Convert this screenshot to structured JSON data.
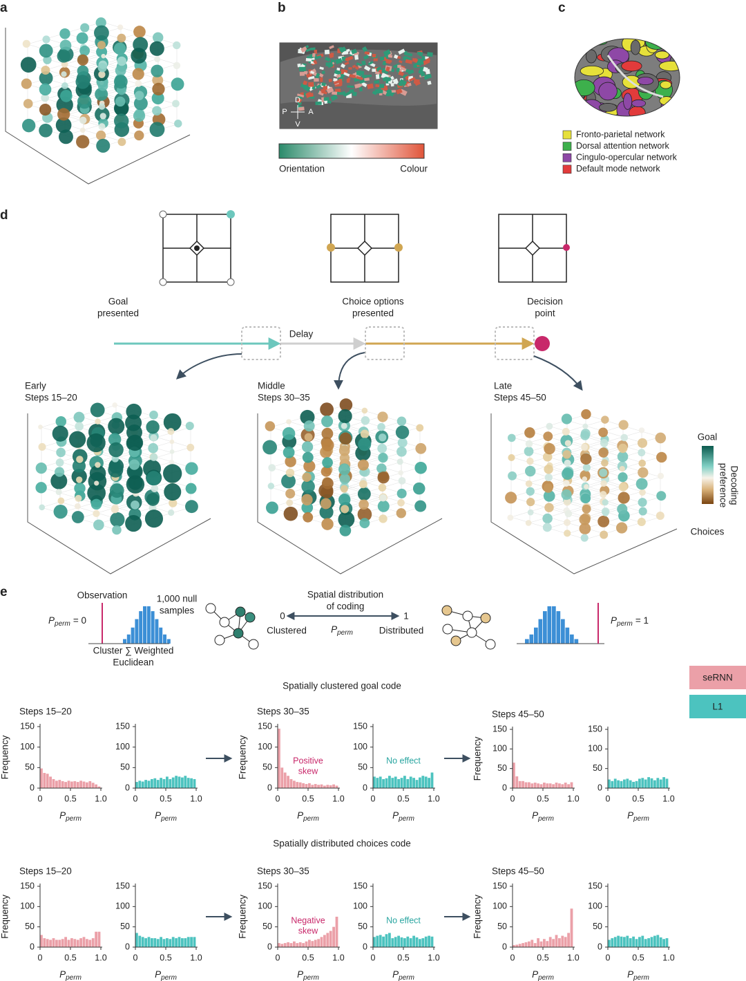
{
  "panel_labels": {
    "a": "a",
    "b": "b",
    "c": "c",
    "d": "d",
    "e": "e"
  },
  "panel_b": {
    "compass": {
      "D": "D",
      "V": "V",
      "P": "P",
      "A": "A"
    },
    "colorbar_left": "Orientation",
    "colorbar_right": "Colour"
  },
  "panel_c": {
    "legend": [
      {
        "label": "Fronto-parietal network",
        "color": "#e6e03a"
      },
      {
        "label": "Dorsal attention network",
        "color": "#3db04c"
      },
      {
        "label": "Cingulo-opercular network",
        "color": "#8e48a6"
      },
      {
        "label": "Default mode network",
        "color": "#e23b3b"
      }
    ]
  },
  "panel_d": {
    "events": [
      [
        "Goal",
        "presented"
      ],
      [
        "Choice options",
        "presented"
      ],
      [
        "Decision",
        "point"
      ]
    ],
    "delay": "Delay",
    "phases": [
      [
        "Early",
        "Steps 15–20"
      ],
      [
        "Middle",
        "Steps 30–35"
      ],
      [
        "Late",
        "Steps 45–50"
      ]
    ],
    "colorbar": {
      "top": "Goal",
      "bottom": "Choices",
      "label": [
        "Decoding",
        "preference"
      ]
    }
  },
  "panel_e": {
    "observation": "Observation",
    "null_samples": [
      "1,000 null",
      "samples"
    ],
    "p_symbol": "P",
    "p_sub": "perm",
    "p_left_value": "= 0",
    "p_right_value": "= 1",
    "statistic": [
      "Cluster ∑ Weighted",
      "Euclidean"
    ],
    "spatial": [
      "Spatial distribution",
      "of coding"
    ],
    "scale_left": "0",
    "scale_right": "1",
    "clustered": "Clustered",
    "distributed": "Distributed",
    "legend": [
      {
        "name": "seRNN",
        "color": "#eba0a8"
      },
      {
        "name": "L1",
        "color": "#4cc3bf"
      }
    ],
    "rows": [
      "Spatially clustered goal code",
      "Spatially distributed choices code"
    ]
  },
  "chart_data": [
    {
      "type": "histogram",
      "title": "Steps 15–20",
      "ylabel": "Frequency",
      "xlabel": "P",
      "xlabel_sub": "perm",
      "color": "#eba0a8",
      "bins": [
        0,
        0.05,
        0.1,
        0.15,
        0.2,
        0.25,
        0.3,
        0.35,
        0.4,
        0.45,
        0.5,
        0.55,
        0.6,
        0.65,
        0.7,
        0.75,
        0.8,
        0.85,
        0.9,
        0.95,
        1
      ],
      "values": [
        48,
        37,
        35,
        28,
        22,
        18,
        20,
        17,
        15,
        18,
        16,
        17,
        15,
        18,
        16,
        14,
        17,
        13,
        9,
        4
      ],
      "xlim": [
        0,
        1
      ],
      "ylim": [
        0,
        150
      ],
      "xticks": [
        0,
        0.5,
        {
          "value": 1,
          "label": "1.0"
        }
      ],
      "yticks": [
        0,
        50,
        100,
        150
      ]
    },
    {
      "type": "histogram",
      "xlabel": "P",
      "xlabel_sub": "perm",
      "color": "#4cc3bf",
      "bins": [
        0,
        0.05,
        0.1,
        0.15,
        0.2,
        0.25,
        0.3,
        0.35,
        0.4,
        0.45,
        0.5,
        0.55,
        0.6,
        0.65,
        0.7,
        0.75,
        0.8,
        0.85,
        0.9,
        0.95,
        1
      ],
      "values": [
        15,
        18,
        16,
        20,
        18,
        22,
        24,
        20,
        25,
        22,
        28,
        22,
        26,
        30,
        28,
        26,
        30,
        25,
        24,
        22
      ],
      "xlim": [
        0,
        1
      ],
      "ylim": [
        0,
        150
      ],
      "xticks": [
        0,
        0.5,
        {
          "value": 1,
          "label": "1.0"
        }
      ],
      "yticks": [
        0,
        50,
        100,
        150
      ]
    },
    {
      "type": "histogram",
      "title": "Steps 30–35",
      "ylabel": "Frequency",
      "xlabel": "P",
      "xlabel_sub": "perm",
      "color": "#eba0a8",
      "annotation": [
        "Positive",
        "skew"
      ],
      "bins": [
        0,
        0.05,
        0.1,
        0.15,
        0.2,
        0.25,
        0.3,
        0.35,
        0.4,
        0.45,
        0.5,
        0.55,
        0.6,
        0.65,
        0.7,
        0.75,
        0.8,
        0.85,
        0.9,
        0.95,
        1
      ],
      "values": [
        145,
        50,
        38,
        30,
        22,
        18,
        15,
        14,
        12,
        10,
        12,
        8,
        10,
        8,
        9,
        6,
        8,
        7,
        9,
        6
      ],
      "xlim": [
        0,
        1
      ],
      "ylim": [
        0,
        150
      ],
      "xticks": [
        0,
        0.5,
        {
          "value": 1,
          "label": "1.0"
        }
      ],
      "yticks": [
        0,
        50,
        100,
        150
      ]
    },
    {
      "type": "histogram",
      "xlabel": "P",
      "xlabel_sub": "perm",
      "color": "#4cc3bf",
      "annotation": [
        "No effect"
      ],
      "bins": [
        0,
        0.05,
        0.1,
        0.15,
        0.2,
        0.25,
        0.3,
        0.35,
        0.4,
        0.45,
        0.5,
        0.55,
        0.6,
        0.65,
        0.7,
        0.75,
        0.8,
        0.85,
        0.9,
        0.95,
        1
      ],
      "values": [
        28,
        25,
        28,
        22,
        24,
        30,
        25,
        28,
        22,
        25,
        30,
        22,
        28,
        25,
        20,
        26,
        30,
        28,
        25,
        38
      ],
      "xlim": [
        0,
        1
      ],
      "ylim": [
        0,
        150
      ],
      "xticks": [
        0,
        0.5,
        {
          "value": 1,
          "label": "1.0"
        }
      ],
      "yticks": [
        0,
        50,
        100,
        150
      ]
    },
    {
      "type": "histogram",
      "title": "Steps 45–50",
      "ylabel": "Frequency",
      "xlabel": "P",
      "xlabel_sub": "perm",
      "color": "#eba0a8",
      "bins": [
        0,
        0.05,
        0.1,
        0.15,
        0.2,
        0.25,
        0.3,
        0.35,
        0.4,
        0.45,
        0.5,
        0.55,
        0.6,
        0.65,
        0.7,
        0.75,
        0.8,
        0.85,
        0.9,
        0.95,
        1
      ],
      "values": [
        65,
        30,
        18,
        18,
        15,
        15,
        12,
        14,
        12,
        10,
        14,
        12,
        12,
        10,
        14,
        12,
        10,
        14,
        10,
        15
      ],
      "xlim": [
        0,
        1
      ],
      "ylim": [
        0,
        150
      ],
      "xticks": [
        0,
        0.5,
        {
          "value": 1,
          "label": "1.0"
        }
      ],
      "yticks": [
        0,
        50,
        100,
        150
      ]
    },
    {
      "type": "histogram",
      "xlabel": "P",
      "xlabel_sub": "perm",
      "color": "#4cc3bf",
      "bins": [
        0,
        0.05,
        0.1,
        0.15,
        0.2,
        0.25,
        0.3,
        0.35,
        0.4,
        0.45,
        0.5,
        0.55,
        0.6,
        0.65,
        0.7,
        0.75,
        0.8,
        0.85,
        0.9,
        0.95,
        1
      ],
      "values": [
        22,
        18,
        24,
        20,
        18,
        22,
        24,
        20,
        16,
        18,
        24,
        26,
        22,
        28,
        25,
        20,
        26,
        22,
        28,
        24
      ],
      "xlim": [
        0,
        1
      ],
      "ylim": [
        0,
        150
      ],
      "xticks": [
        0,
        0.5,
        {
          "value": 1,
          "label": "1.0"
        }
      ],
      "yticks": [
        0,
        50,
        100,
        150
      ]
    },
    {
      "type": "histogram",
      "title": "Steps 15–20",
      "ylabel": "Frequency",
      "xlabel": "P",
      "xlabel_sub": "perm",
      "color": "#eba0a8",
      "bins": [
        0,
        0.05,
        0.1,
        0.15,
        0.2,
        0.25,
        0.3,
        0.35,
        0.4,
        0.45,
        0.5,
        0.55,
        0.6,
        0.65,
        0.7,
        0.75,
        0.8,
        0.85,
        0.9,
        0.95,
        1
      ],
      "values": [
        30,
        22,
        20,
        18,
        22,
        18,
        18,
        20,
        25,
        18,
        22,
        20,
        18,
        22,
        25,
        20,
        18,
        22,
        38,
        38
      ],
      "xlim": [
        0,
        1
      ],
      "ylim": [
        0,
        150
      ],
      "xticks": [
        0,
        0.5,
        {
          "value": 1,
          "label": "1.0"
        }
      ],
      "yticks": [
        0,
        50,
        100,
        150
      ]
    },
    {
      "type": "histogram",
      "xlabel": "P",
      "xlabel_sub": "perm",
      "color": "#4cc3bf",
      "bins": [
        0,
        0.05,
        0.1,
        0.15,
        0.2,
        0.25,
        0.3,
        0.35,
        0.4,
        0.45,
        0.5,
        0.55,
        0.6,
        0.65,
        0.7,
        0.75,
        0.8,
        0.85,
        0.9,
        0.95,
        1
      ],
      "values": [
        35,
        28,
        25,
        22,
        25,
        22,
        22,
        20,
        25,
        20,
        22,
        20,
        25,
        22,
        25,
        22,
        22,
        25,
        25,
        25
      ],
      "xlim": [
        0,
        1
      ],
      "ylim": [
        0,
        150
      ],
      "xticks": [
        0,
        0.5,
        {
          "value": 1,
          "label": "1.0"
        }
      ],
      "yticks": [
        0,
        50,
        100,
        150
      ]
    },
    {
      "type": "histogram",
      "title": "Steps 30–35",
      "ylabel": "Frequency",
      "xlabel": "P",
      "xlabel_sub": "perm",
      "color": "#eba0a8",
      "annotation": [
        "Negative",
        "skew"
      ],
      "bins": [
        0,
        0.05,
        0.1,
        0.15,
        0.2,
        0.25,
        0.3,
        0.35,
        0.4,
        0.45,
        0.5,
        0.55,
        0.6,
        0.65,
        0.7,
        0.75,
        0.8,
        0.85,
        0.9,
        0.95,
        1
      ],
      "values": [
        10,
        8,
        10,
        12,
        10,
        14,
        10,
        12,
        10,
        14,
        18,
        15,
        18,
        20,
        25,
        30,
        35,
        40,
        50,
        75
      ],
      "xlim": [
        0,
        1
      ],
      "ylim": [
        0,
        150
      ],
      "xticks": [
        0,
        0.5,
        {
          "value": 1,
          "label": "1.0"
        }
      ],
      "yticks": [
        0,
        50,
        100,
        150
      ]
    },
    {
      "type": "histogram",
      "xlabel": "P",
      "xlabel_sub": "perm",
      "color": "#4cc3bf",
      "annotation": [
        "No effect"
      ],
      "bins": [
        0,
        0.05,
        0.1,
        0.15,
        0.2,
        0.25,
        0.3,
        0.35,
        0.4,
        0.45,
        0.5,
        0.55,
        0.6,
        0.65,
        0.7,
        0.75,
        0.8,
        0.85,
        0.9,
        0.95,
        1
      ],
      "values": [
        25,
        28,
        30,
        26,
        32,
        35,
        22,
        25,
        28,
        24,
        22,
        26,
        22,
        28,
        24,
        20,
        22,
        26,
        28,
        26
      ],
      "xlim": [
        0,
        1
      ],
      "ylim": [
        0,
        150
      ],
      "xticks": [
        0,
        0.5,
        {
          "value": 1,
          "label": "1.0"
        }
      ],
      "yticks": [
        0,
        50,
        100,
        150
      ]
    },
    {
      "type": "histogram",
      "title": "Steps 45–50",
      "ylabel": "Frequency",
      "xlabel": "P",
      "xlabel_sub": "perm",
      "color": "#eba0a8",
      "bins": [
        0,
        0.05,
        0.1,
        0.15,
        0.2,
        0.25,
        0.3,
        0.35,
        0.4,
        0.45,
        0.5,
        0.55,
        0.6,
        0.65,
        0.7,
        0.75,
        0.8,
        0.85,
        0.9,
        0.95,
        1
      ],
      "values": [
        5,
        6,
        8,
        10,
        12,
        14,
        18,
        10,
        22,
        14,
        20,
        15,
        25,
        20,
        30,
        22,
        28,
        25,
        35,
        95
      ],
      "xlim": [
        0,
        1
      ],
      "ylim": [
        0,
        150
      ],
      "xticks": [
        0,
        0.5,
        {
          "value": 1,
          "label": "1.0"
        }
      ],
      "yticks": [
        0,
        50,
        100,
        150
      ]
    },
    {
      "type": "histogram",
      "xlabel": "P",
      "xlabel_sub": "perm",
      "color": "#4cc3bf",
      "bins": [
        0,
        0.05,
        0.1,
        0.15,
        0.2,
        0.25,
        0.3,
        0.35,
        0.4,
        0.45,
        0.5,
        0.55,
        0.6,
        0.65,
        0.7,
        0.75,
        0.8,
        0.85,
        0.9,
        0.95,
        1
      ],
      "values": [
        18,
        22,
        25,
        28,
        26,
        25,
        28,
        22,
        26,
        20,
        25,
        28,
        20,
        22,
        25,
        28,
        30,
        24,
        20,
        22
      ],
      "xlim": [
        0,
        1
      ],
      "ylim": [
        0,
        150
      ],
      "xticks": [
        0,
        0.5,
        {
          "value": 1,
          "label": "1.0"
        }
      ],
      "yticks": [
        0,
        50,
        100,
        150
      ]
    }
  ]
}
